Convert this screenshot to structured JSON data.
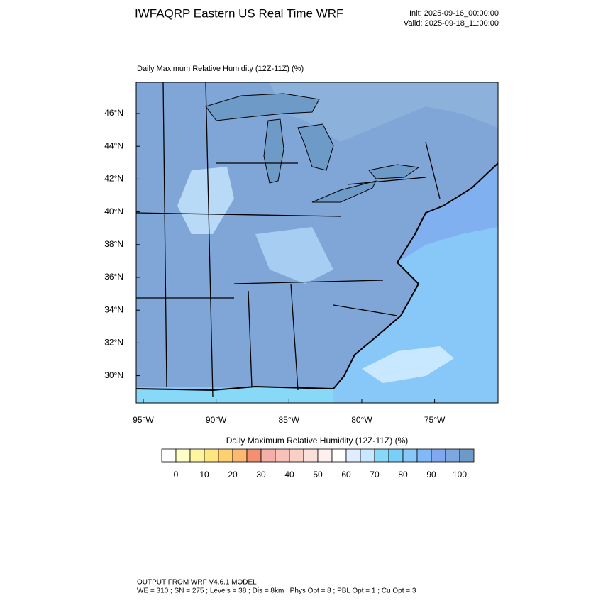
{
  "header": {
    "title": "IWFAQRP Eastern US Real Time WRF",
    "init": "Init: 2025-09-16_00:00:00",
    "valid": "Valid: 2025-09-18_11:00:00"
  },
  "map": {
    "subtitle": "Daily Maximum Relative Humidity (12Z-11Z)   (%)",
    "lat_ticks": [
      {
        "value": 46,
        "label": "46°N"
      },
      {
        "value": 44,
        "label": "44°N"
      },
      {
        "value": 42,
        "label": "42°N"
      },
      {
        "value": 40,
        "label": "40°N"
      },
      {
        "value": 38,
        "label": "38°N"
      },
      {
        "value": 36,
        "label": "36°N"
      },
      {
        "value": 34,
        "label": "34°N"
      },
      {
        "value": 32,
        "label": "32°N"
      },
      {
        "value": 30,
        "label": "30°N"
      }
    ],
    "lon_ticks": [
      {
        "value": -95,
        "label": "95°W"
      },
      {
        "value": -90,
        "label": "90°W"
      },
      {
        "value": -85,
        "label": "85°W"
      },
      {
        "value": -80,
        "label": "80°W"
      },
      {
        "value": -75,
        "label": "75°W"
      }
    ]
  },
  "colorbar": {
    "title": "Daily Maximum Relative Humidity (12Z-11Z)  (%)",
    "ticks": [
      0,
      10,
      20,
      30,
      40,
      50,
      60,
      70,
      80,
      90,
      100
    ],
    "colors": [
      "#ffffff",
      "#ffffc8",
      "#fff5a0",
      "#ffe680",
      "#ffd070",
      "#ffb870",
      "#f49070",
      "#f4b0a8",
      "#f8c0b8",
      "#f8d0c8",
      "#fae0d8",
      "#fff0f0",
      "#ffffff",
      "#e0ecff",
      "#c8e8ff",
      "#88d8f8",
      "#78d0f8",
      "#88c8f8",
      "#80b8f8",
      "#80a8f0",
      "#7ca8e0",
      "#6e9ac8"
    ]
  },
  "footer": {
    "line1": "OUTPUT FROM WRF V4.6.1 MODEL",
    "line2": "WE = 310 ; SN = 275 ; Levels = 38 ; Dis = 8km ; Phys Opt = 8 ; PBL Opt = 1 ; Cu Opt = 3"
  }
}
